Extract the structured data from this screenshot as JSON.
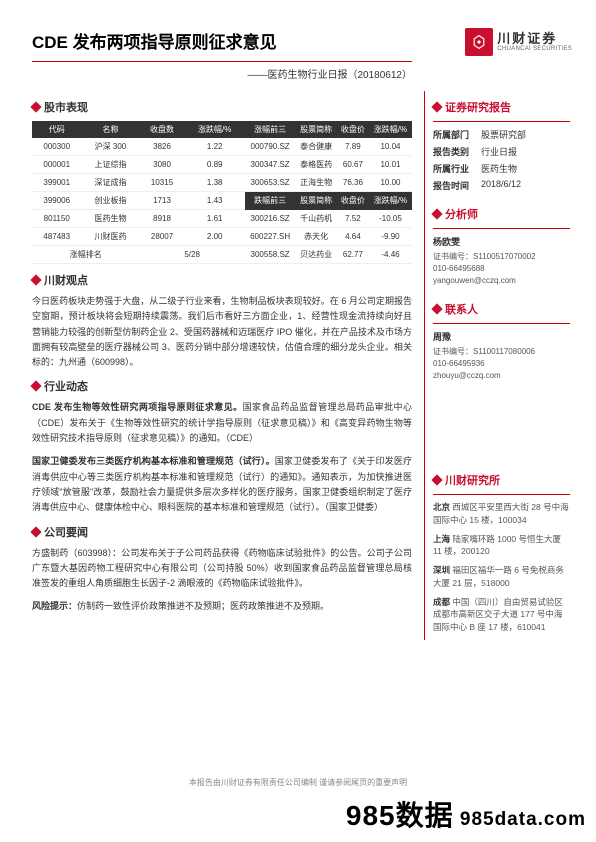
{
  "header": {
    "title": "CDE 发布两项指导原则征求意见",
    "subtitle": "——医药生物行业日报（20180612）",
    "logo_cn": "川财证券",
    "logo_en": "CHUANCAI SECURITIES"
  },
  "sections": {
    "market": "股市表现",
    "viewpoint": "川财观点",
    "dynamic": "行业动态",
    "company": "公司要闻",
    "report": "证券研究报告",
    "analyst": "分析师",
    "contact": "联系人",
    "institute": "川财研究所"
  },
  "table_left": {
    "headers": [
      "代码",
      "名称",
      "收盘数",
      "涨跌幅/%"
    ],
    "rows": [
      [
        "000300",
        "沪深 300",
        "3826",
        "1.22"
      ],
      [
        "000001",
        "上证综指",
        "3080",
        "0.89"
      ],
      [
        "399001",
        "深证成指",
        "10315",
        "1.38"
      ],
      [
        "399006",
        "创业板指",
        "1713",
        "1.43"
      ],
      [
        "801150",
        "医药生物",
        "8918",
        "1.61"
      ],
      [
        "487483",
        "川财医药",
        "28007",
        "2.00"
      ]
    ],
    "foot_label": "涨幅排名",
    "foot_val": "5/28"
  },
  "table_right": {
    "head1": [
      "涨幅前三",
      "股票简称",
      "收盘价",
      "涨跌幅/%"
    ],
    "rows1": [
      [
        "000790.SZ",
        "泰合健康",
        "7.89",
        "10.04"
      ],
      [
        "300347.SZ",
        "泰格医药",
        "60.67",
        "10.01"
      ],
      [
        "300653.SZ",
        "正海生物",
        "76.36",
        "10.00"
      ]
    ],
    "head2": [
      "跌幅前三",
      "股票简称",
      "收盘价",
      "涨跌幅/%"
    ],
    "rows2": [
      [
        "300216.SZ",
        "千山药机",
        "7.52",
        "-10.05"
      ],
      [
        "600227.SH",
        "赤天化",
        "4.64",
        "-9.90"
      ],
      [
        "300558.SZ",
        "贝达药业",
        "62.77",
        "-4.46"
      ]
    ]
  },
  "viewpoint_text": "今日医药板块走势强于大盘，从二级子行业来看，生物制品板块表现较好。在 6 月公司定期报告空窗期，预计板块将会短期持续震荡。我们后市看好三方面企业，1、经营性现金流持续向好且营销能力较强的创新型仿制药企业 2、受国药器械和迈瑞医疗 IPO 催化，并在产品技术及市场方面拥有较高壁垒的医疗器械公司 3、医药分销中部分增速较快，估值合理的细分龙头企业。相关标的：九州通（600998）。",
  "dynamic1_bold": "CDE 发布生物等效性研究两项指导原则征求意见。",
  "dynamic1_text": "国家食品药品监督管理总局药品审批中心（CDE）发布关于《生物等效性研究的统计学指导原则（征求意见稿）》和《高变异药物生物等效性研究技术指导原则（征求意见稿）》的通知。（CDE）",
  "dynamic2_bold": "国家卫健委发布三类医疗机构基本标准和管理规范（试行）。",
  "dynamic2_text": "国家卫健委发布了《关于印发医疗消毒供应中心等三类医疗机构基本标准和管理规范（试行）的通知》。通知表示，为加快推进医疗领域\"放管服\"改革，鼓励社会力量提供多层次多样化的医疗服务，国家卫健委组织制定了医疗消毒供应中心、健康体检中心、眼科医院的基本标准和管理规范（试行）。（国家卫健委）",
  "company_text": "方盛制药（603998）：公司发布关于子公司药品获得《药物临床试验批件》的公告。公司子公司广东暨大基因药物工程研究中心有限公司（公司持股 50%）收到国家食品药品监督管理总局核准签发的重组人角质细胞生长因子-2 滴眼液的《药物临床试验批件》。",
  "risk_label": "风险提示：",
  "risk_text": "仿制药一致性评价政策推进不及预期；医药政策推进不及预期。",
  "report_meta": {
    "dept_k": "所属部门",
    "dept_v": "股票研究部",
    "type_k": "报告类别",
    "type_v": "行业日报",
    "ind_k": "所属行业",
    "ind_v": "医药生物",
    "time_k": "报告时间",
    "time_v": "2018/6/12"
  },
  "analyst": {
    "name": "杨欧雯",
    "cert": "证书编号：S1100517070002",
    "tel": "010-66495688",
    "email": "yangouwen@cczq.com"
  },
  "contact": {
    "name": "周豫",
    "cert": "证书编号：S1100117080006",
    "tel": "010-66495936",
    "email": "zhouyu@cczq.com"
  },
  "offices": [
    {
      "city": "北京",
      "addr": "西城区平安里西大街 28 号中海国际中心 15 楼，100034"
    },
    {
      "city": "上海",
      "addr": "陆家嘴环路 1000 号恒生大厦 11 楼，200120"
    },
    {
      "city": "深圳",
      "addr": "福田区福华一路 6 号免税商务大厦 21 层，518000"
    },
    {
      "city": "成都",
      "addr": "中国（四川）自由贸易试验区成都市高新区交子大道 177 号中海国际中心 B 座 17 楼，610041"
    }
  ],
  "footer": "本报告由川财证券有限责任公司编制 谨请参阅尾页的重要声明",
  "watermark": "985数据",
  "watermark_dom": " 985data.com"
}
